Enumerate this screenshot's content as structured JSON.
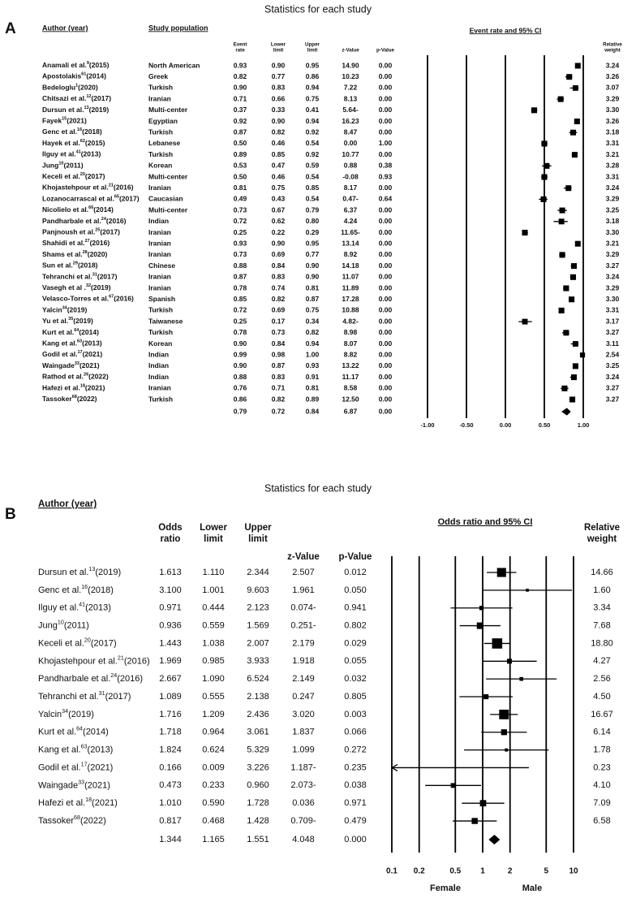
{
  "chart_data": [
    {
      "type": "forest",
      "panel": "A",
      "title": "Statistics for each study",
      "scale": "linear",
      "headers": {
        "author": "Author (year)",
        "population": "Study population",
        "value": [
          "Event",
          "rate"
        ],
        "lower": [
          "Lower",
          "limit"
        ],
        "upper": [
          "Upper",
          "limit"
        ],
        "z": "z-Value",
        "p": "p-Value",
        "plot": "Event rate and 95% CI",
        "weight": [
          "Relative",
          "weight"
        ]
      },
      "authors": [
        "Anamali et al.",
        "Apostolakis",
        "Bedeloglu",
        "Chitsazi et al.",
        "Dursun et al.",
        "Fayek",
        "Genc et al.",
        "Hayek et al.",
        "Ilguy et al.",
        "Jung",
        "Keceli et al.",
        "Khojastehpour et al.",
        "Lozanocarrascal et al.",
        "Nicolielo et al.",
        "Pandharbale et al.",
        "Panjnoush et al.",
        "Shahidi et al.",
        "Shams et al.",
        "Sun et al.",
        "Tehranchi et al.",
        "Vasegh et al .",
        "Velasco-Torres et al.",
        "Yalcin",
        "Yu et al.",
        "Kurt et al.",
        "Kang et al.",
        "Godil et al.",
        "Waingade",
        "Rathod et al.",
        "Hafezi et al.",
        "Tassoker"
      ],
      "refs": [
        "9",
        "61",
        "1",
        "12",
        "13",
        "15",
        "16",
        "62",
        "41",
        "10",
        "20",
        "21",
        "65",
        "66",
        "24",
        "25",
        "27",
        "28",
        "29",
        "31",
        "32",
        "67",
        "34",
        "35",
        "64",
        "63",
        "17",
        "33",
        "26",
        "18",
        "68"
      ],
      "years": [
        "(2015)",
        "(2014)",
        "(2020)",
        "(2017)",
        "(2019)",
        "(2021)",
        "(2018)",
        "(2015)",
        "(2013)",
        "(2011)",
        "(2017)",
        "(2016)",
        "(2017)",
        "(2014)",
        "(2016)",
        "(2017)",
        "(2016)",
        "(2020)",
        "(2018)",
        "(2017)",
        "(2019)",
        "(2016)",
        "(2019)",
        "(2019)",
        "(2014)",
        "(2013)",
        "(2021)",
        "(2021)",
        "(2022)",
        "(2021)",
        "(2022)"
      ],
      "populations": [
        "North American",
        "Greek",
        "Turkish",
        "Iranian",
        "Multi-center",
        "Egyptian",
        "Turkish",
        "Lebanese",
        "Turkish",
        "Korean",
        "Multi-center",
        "Iranian",
        "Caucasian",
        "Multi-center",
        "Indian",
        "Iranian",
        "Iranian",
        "Iranian",
        "Chinese",
        "Iranian",
        "Iranian",
        "Spanish",
        "Turkish",
        "Taiwanese",
        "Turkish",
        "Korean",
        "Indian",
        "Indian",
        "Indian",
        "Iranian",
        "Turkish"
      ],
      "values": [
        0.93,
        0.82,
        0.9,
        0.71,
        0.37,
        0.92,
        0.87,
        0.5,
        0.89,
        0.53,
        0.5,
        0.81,
        0.49,
        0.73,
        0.72,
        0.25,
        0.93,
        0.73,
        0.88,
        0.87,
        0.78,
        0.85,
        0.72,
        0.25,
        0.78,
        0.9,
        0.99,
        0.9,
        0.88,
        0.76,
        0.86
      ],
      "lower": [
        0.9,
        0.77,
        0.83,
        0.66,
        0.33,
        0.9,
        0.82,
        0.46,
        0.85,
        0.47,
        0.46,
        0.75,
        0.43,
        0.67,
        0.62,
        0.22,
        0.9,
        0.69,
        0.84,
        0.83,
        0.74,
        0.82,
        0.69,
        0.17,
        0.73,
        0.84,
        0.98,
        0.87,
        0.83,
        0.71,
        0.82
      ],
      "upper": [
        0.95,
        0.86,
        0.94,
        0.75,
        0.41,
        0.94,
        0.92,
        0.54,
        0.92,
        0.59,
        0.54,
        0.85,
        0.54,
        0.79,
        0.8,
        0.29,
        0.95,
        0.77,
        0.9,
        0.9,
        0.81,
        0.87,
        0.75,
        0.34,
        0.82,
        0.94,
        1.0,
        0.93,
        0.91,
        0.81,
        0.89
      ],
      "z_values": [
        "14.90",
        "10.23",
        "7.22",
        "8.13",
        "5.64-",
        "16.23",
        "8.47",
        "0.00",
        "10.77",
        "0.88",
        "-0.08",
        "8.17",
        "0.47-",
        "6.37",
        "4.24",
        "11.65-",
        "13.14",
        "8.92",
        "14.18",
        "11.07",
        "11.89",
        "17.28",
        "10.88",
        "4.82-",
        "8.98",
        "8.07",
        "8.82",
        "13.22",
        "11.17",
        "8.58",
        "12.50"
      ],
      "p_values": [
        "0.00",
        "0.00",
        "0.00",
        "0.00",
        "0.00",
        "0.00",
        "0.00",
        "1.00",
        "0.00",
        "0.38",
        "0.93",
        "0.00",
        "0.64",
        "0.00",
        "0.00",
        "0.00",
        "0.00",
        "0.00",
        "0.00",
        "0.00",
        "0.00",
        "0.00",
        "0.00",
        "0.00",
        "0.00",
        "0.00",
        "0.00",
        "0.00",
        "0.00",
        "0.00",
        "0.00"
      ],
      "weights": [
        3.24,
        3.26,
        3.07,
        3.29,
        3.3,
        3.26,
        3.18,
        3.31,
        3.21,
        3.28,
        3.31,
        3.24,
        3.29,
        3.25,
        3.18,
        3.3,
        3.21,
        3.29,
        3.27,
        3.24,
        3.29,
        3.3,
        3.31,
        3.17,
        3.27,
        3.11,
        2.54,
        3.25,
        3.24,
        3.27,
        3.27
      ],
      "summary": {
        "value": 0.79,
        "lower": 0.72,
        "upper": 0.84,
        "z": "6.87",
        "p": "0.00"
      },
      "xlim": [
        -1,
        1
      ],
      "xticks": [
        {
          "value": -1,
          "label": "-1.00"
        },
        {
          "value": -0.5,
          "label": "-0.50"
        },
        {
          "value": 0,
          "label": "0.00"
        },
        {
          "value": 0.5,
          "label": "0.50"
        },
        {
          "value": 1,
          "label": "1.00"
        }
      ],
      "color": "#000000"
    },
    {
      "type": "forest",
      "panel": "B",
      "title": "Statistics for each study",
      "scale": "log",
      "headers": {
        "author": "Author (year)",
        "value": [
          "Odds",
          "ratio"
        ],
        "lower": [
          "Lower",
          "limit"
        ],
        "upper": [
          "Upper",
          "limit"
        ],
        "z": "z-Value",
        "p": "p-Value",
        "plot": "Odds ratio and 95% CI",
        "weight": [
          "Relative",
          "weight"
        ]
      },
      "authors": [
        "Dursun et al.",
        "Genc et al.",
        "Ilguy et al.",
        "Jung",
        "Keceli et al.",
        "Khojastehpour et al.",
        "Pandharbale et al.",
        "Tehranchi et al.",
        "Yalcin",
        "Kurt et al.",
        "Kang et al.",
        "Godil et al.",
        "Waingade",
        "Hafezi et al.",
        "Tassoker"
      ],
      "refs": [
        "13",
        "16",
        "41",
        "10",
        "20",
        "21",
        "24",
        "31",
        "34",
        "64",
        "63",
        "17",
        "33",
        "18",
        "68"
      ],
      "years": [
        "(2019)",
        "(2018)",
        "(2013)",
        "(2011)",
        "(2017)",
        "(2016)",
        "(2016)",
        "(2017)",
        "(2019)",
        "(2014)",
        "(2013)",
        "(2021)",
        "(2021)",
        "(2021)",
        "(2022)"
      ],
      "values": [
        1.613,
        3.1,
        0.971,
        0.936,
        1.443,
        1.969,
        2.667,
        1.089,
        1.716,
        1.718,
        1.824,
        0.166,
        0.473,
        1.01,
        0.817
      ],
      "lower": [
        1.11,
        1.001,
        0.444,
        0.559,
        1.038,
        0.985,
        1.09,
        0.555,
        1.209,
        0.964,
        0.624,
        0.009,
        0.233,
        0.59,
        0.468
      ],
      "upper": [
        2.344,
        9.603,
        2.123,
        1.569,
        2.007,
        3.933,
        6.524,
        2.138,
        2.436,
        3.061,
        5.329,
        3.226,
        0.96,
        1.728,
        1.428
      ],
      "z_values": [
        "2.507",
        "1.961",
        "0.074-",
        "0.251-",
        "2.179",
        "1.918",
        "2.149",
        "0.247",
        "3.020",
        "1.837",
        "1.099",
        "1.187-",
        "2.073-",
        "0.036",
        "0.709-"
      ],
      "p_values": [
        "0.012",
        "0.050",
        "0.941",
        "0.802",
        "0.029",
        "0.055",
        "0.032",
        "0.805",
        "0.003",
        "0.066",
        "0.272",
        "0.235",
        "0.038",
        "0.971",
        "0.479"
      ],
      "weights": [
        14.66,
        1.6,
        3.34,
        7.68,
        18.8,
        4.27,
        2.56,
        4.5,
        16.67,
        6.14,
        1.78,
        0.23,
        4.1,
        7.09,
        6.58
      ],
      "summary": {
        "value": 1.344,
        "lower": 1.165,
        "upper": 1.551,
        "z": "4.048",
        "p": "0.000"
      },
      "xlim": [
        0.1,
        10
      ],
      "xticks": [
        0.1,
        0.2,
        0.5,
        1,
        2,
        5,
        10
      ],
      "x_labels": [
        "Female",
        "Male"
      ],
      "color": "#000000"
    }
  ]
}
